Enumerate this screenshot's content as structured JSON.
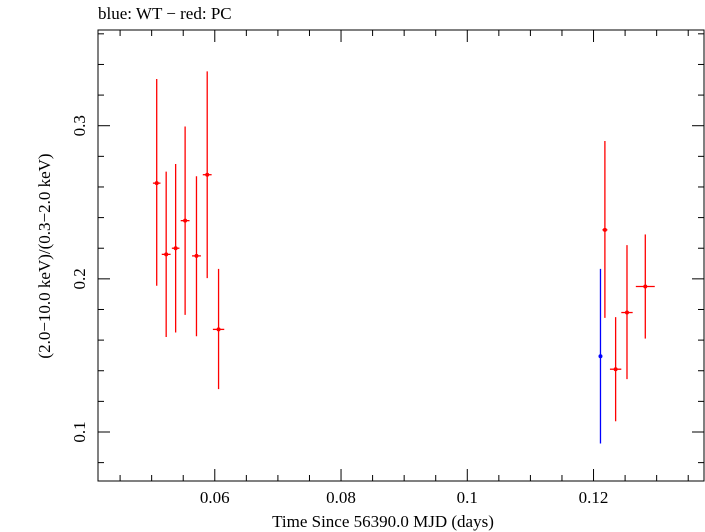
{
  "chart_data": {
    "type": "scatter",
    "title": "blue: WT − red: PC",
    "xlabel": "Time Since 56390.0 MJD (days)",
    "ylabel": "(2.0−10.0 keV)/(0.3−2.0 keV)",
    "xlim": [
      0.0415,
      0.1375
    ],
    "ylim": [
      0.068,
      0.3625
    ],
    "xticks": [
      0.06,
      0.08,
      0.1,
      0.12
    ],
    "xtick_labels": [
      "0.06",
      "0.08",
      "0.1",
      "0.12"
    ],
    "yticks": [
      0.1,
      0.2,
      0.3
    ],
    "ytick_labels": [
      "0.1",
      "0.2",
      "0.3"
    ],
    "grid": false,
    "series": [
      {
        "name": "WT",
        "color": "#0000ff",
        "points": [
          {
            "x": 0.1211,
            "xerr": 0.0002,
            "y": 0.1495,
            "ylo": 0.0925,
            "yhi": 0.2065
          }
        ]
      },
      {
        "name": "PC",
        "color": "#ff0000",
        "points": [
          {
            "x": 0.0508,
            "xerr": 0.0006,
            "y": 0.2625,
            "ylo": 0.1955,
            "yhi": 0.3305
          },
          {
            "x": 0.0523,
            "xerr": 0.0007,
            "y": 0.216,
            "ylo": 0.162,
            "yhi": 0.27
          },
          {
            "x": 0.0538,
            "xerr": 0.0006,
            "y": 0.22,
            "ylo": 0.165,
            "yhi": 0.275
          },
          {
            "x": 0.0553,
            "xerr": 0.0007,
            "y": 0.238,
            "ylo": 0.1765,
            "yhi": 0.2995
          },
          {
            "x": 0.0571,
            "xerr": 0.0007,
            "y": 0.215,
            "ylo": 0.1625,
            "yhi": 0.267
          },
          {
            "x": 0.0588,
            "xerr": 0.0007,
            "y": 0.268,
            "ylo": 0.2005,
            "yhi": 0.3355
          },
          {
            "x": 0.0606,
            "xerr": 0.0009,
            "y": 0.167,
            "ylo": 0.128,
            "yhi": 0.2065
          },
          {
            "x": 0.1218,
            "xerr": 0.0004,
            "y": 0.232,
            "ylo": 0.1745,
            "yhi": 0.29
          },
          {
            "x": 0.1235,
            "xerr": 0.0009,
            "y": 0.141,
            "ylo": 0.107,
            "yhi": 0.175
          },
          {
            "x": 0.1253,
            "xerr": 0.0009,
            "y": 0.178,
            "ylo": 0.1345,
            "yhi": 0.222
          },
          {
            "x": 0.1282,
            "xerr": 0.0015,
            "y": 0.195,
            "ylo": 0.161,
            "yhi": 0.229
          }
        ]
      }
    ]
  }
}
